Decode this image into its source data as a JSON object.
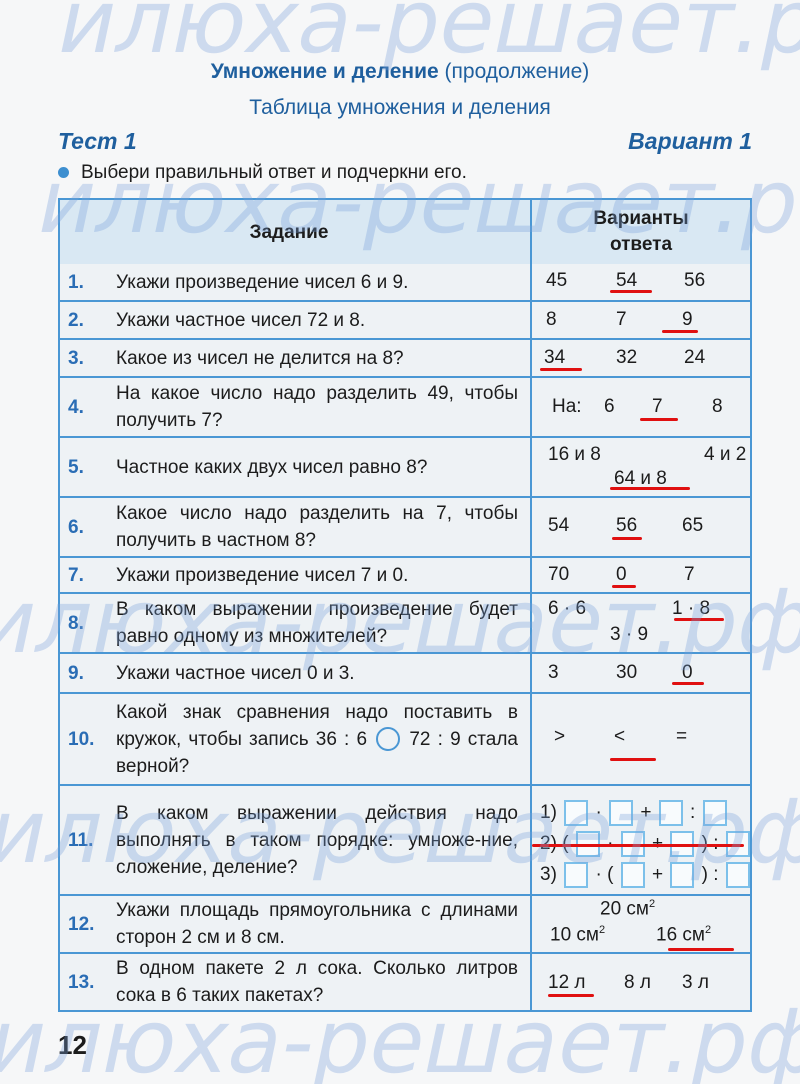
{
  "watermark": "илюха-решает.рф",
  "header": {
    "title_bold": "Умножение и деление",
    "title_rest": "(продолжение)",
    "subtitle": "Таблица умножения и деления",
    "test": "Тест 1",
    "variant": "Вариант 1",
    "instruction": "Выбери правильный ответ и подчеркни его."
  },
  "table": {
    "col_task": "Задание",
    "col_answers_1": "Варианты",
    "col_answers_2": "ответа"
  },
  "rows": [
    {
      "n": "1.",
      "q": "Укажи произведение чисел 6 и 9.",
      "options": [
        "45",
        "54",
        "56"
      ],
      "selected": "54"
    },
    {
      "n": "2.",
      "q": "Укажи частное чисел 72 и 8.",
      "options": [
        "8",
        "7",
        "9"
      ],
      "selected": "9"
    },
    {
      "n": "3.",
      "q": "Какое из чисел не делится на 8?",
      "options": [
        "34",
        "32",
        "24"
      ],
      "selected": "34"
    },
    {
      "n": "4.",
      "q": "На какое число надо разделить 49, чтобы получить 7?",
      "prefix": "На:",
      "options": [
        "6",
        "7",
        "8"
      ],
      "selected": "7"
    },
    {
      "n": "5.",
      "q": "Частное каких двух чисел равно 8?",
      "options": [
        "16 и 8",
        "4 и 2",
        "64 и 8"
      ],
      "selected": "64 и 8"
    },
    {
      "n": "6.",
      "q": "Какое число надо разделить на 7, чтобы получить в частном 8?",
      "options": [
        "54",
        "56",
        "65"
      ],
      "selected": "56"
    },
    {
      "n": "7.",
      "q": "Укажи произведение чисел 7 и 0.",
      "options": [
        "70",
        "0",
        "7"
      ],
      "selected": "0"
    },
    {
      "n": "8.",
      "q": "В каком выражении произведение будет равно одному из множителей?",
      "options": [
        "6 · 6",
        "1 · 8",
        "3 · 9"
      ],
      "selected": "1 · 8"
    },
    {
      "n": "9.",
      "q": "Укажи частное чисел 0 и 3.",
      "options": [
        "3",
        "30",
        "0"
      ],
      "selected": "0"
    },
    {
      "n": "10.",
      "q_a": "Какой знак сравнения надо поставить в кружок, чтобы запись 36 : 6",
      "q_b": "72 : 9 стала верной?",
      "options": [
        ">",
        "<",
        "="
      ],
      "selected": "<"
    },
    {
      "n": "11.",
      "q": "В каком выражении действия надо выполнять в таком порядке: умноже-ние, сложение, деление?",
      "options": [
        "1)",
        "2)",
        "3)"
      ],
      "expressions": [
        "□ · □ + □ : □",
        "( □ · □ + □ ) : □",
        "□ · ( □ + □ ) : □"
      ],
      "selected": "2)"
    },
    {
      "n": "12.",
      "q": "Укажи площадь прямоугольника с длинами сторон 2 см и 8 см.",
      "options": [
        "20 см",
        "10 см",
        "16 см"
      ],
      "unit_power": "2",
      "selected": "16 см"
    },
    {
      "n": "13.",
      "q": "В одном пакете 2 л сока. Сколько литров сока в 6 таких пакетах?",
      "options": [
        "12 л",
        "8 л",
        "3 л"
      ],
      "selected": "12 л"
    }
  ],
  "page_number": "12",
  "colors": {
    "accent": "#1f5f9e",
    "grid": "#4a97d4",
    "underline": "#e01010"
  }
}
